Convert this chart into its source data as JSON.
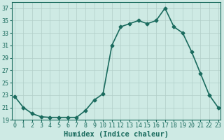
{
  "x": [
    0,
    1,
    2,
    3,
    4,
    5,
    6,
    7,
    8,
    9,
    10,
    11,
    12,
    13,
    14,
    15,
    16,
    17,
    18,
    19,
    20,
    21,
    22,
    23
  ],
  "y": [
    22.8,
    21.0,
    20.0,
    19.5,
    19.4,
    19.4,
    19.4,
    19.4,
    20.5,
    22.2,
    23.2,
    31.0,
    34.0,
    34.5,
    35.0,
    34.5,
    35.0,
    37.0,
    34.0,
    33.0,
    30.0,
    26.5,
    23.0,
    21.0
  ],
  "line_color": "#1a6b5e",
  "marker": "D",
  "marker_size": 2.5,
  "bg_color": "#ceeae4",
  "grid_color": "#b0cec8",
  "ylim": [
    19,
    38
  ],
  "xlim": [
    -0.3,
    23.3
  ],
  "yticks": [
    19,
    21,
    23,
    25,
    27,
    29,
    31,
    33,
    35,
    37
  ],
  "xticks": [
    0,
    1,
    2,
    3,
    4,
    5,
    6,
    7,
    8,
    9,
    10,
    11,
    12,
    13,
    14,
    15,
    16,
    17,
    18,
    19,
    20,
    21,
    22,
    23
  ],
  "xlabel": "Humidex (Indice chaleur)",
  "xlabel_fontsize": 7.5,
  "tick_fontsize": 6,
  "line_width": 1.2
}
